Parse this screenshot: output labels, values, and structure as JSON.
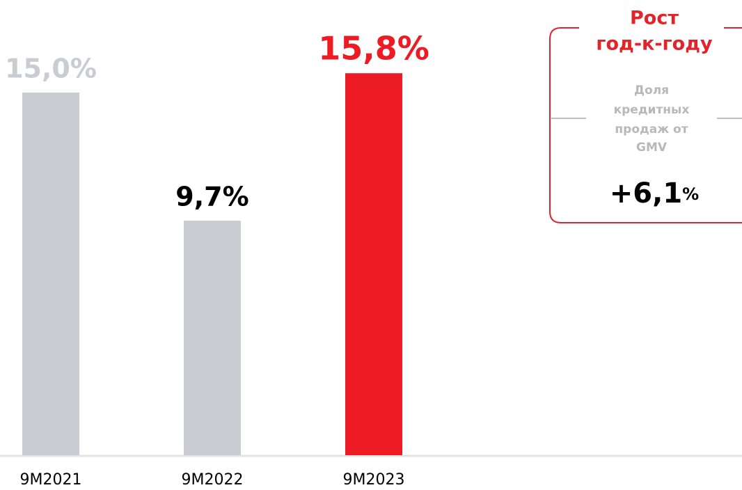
{
  "chart_data": {
    "type": "bar",
    "categories": [
      "9M2021",
      "9M2022",
      "9M2023"
    ],
    "values": [
      15.0,
      9.7,
      15.8
    ],
    "value_labels": [
      "15,0%",
      "9,7%",
      "15,8%"
    ],
    "colors": [
      "#c9ccd3",
      "#c9ccd3",
      "#ed1c24"
    ],
    "label_colors": [
      "#c9ccd3",
      "#000000",
      "#ed1c24"
    ],
    "ylim": [
      0,
      18.8
    ],
    "annotation": {
      "title": [
        "Рост",
        "год-к-году"
      ],
      "label": [
        "Доля",
        "кредитных",
        "продаж от",
        "GMV"
      ],
      "value": "+6,1",
      "unit": "%"
    }
  }
}
